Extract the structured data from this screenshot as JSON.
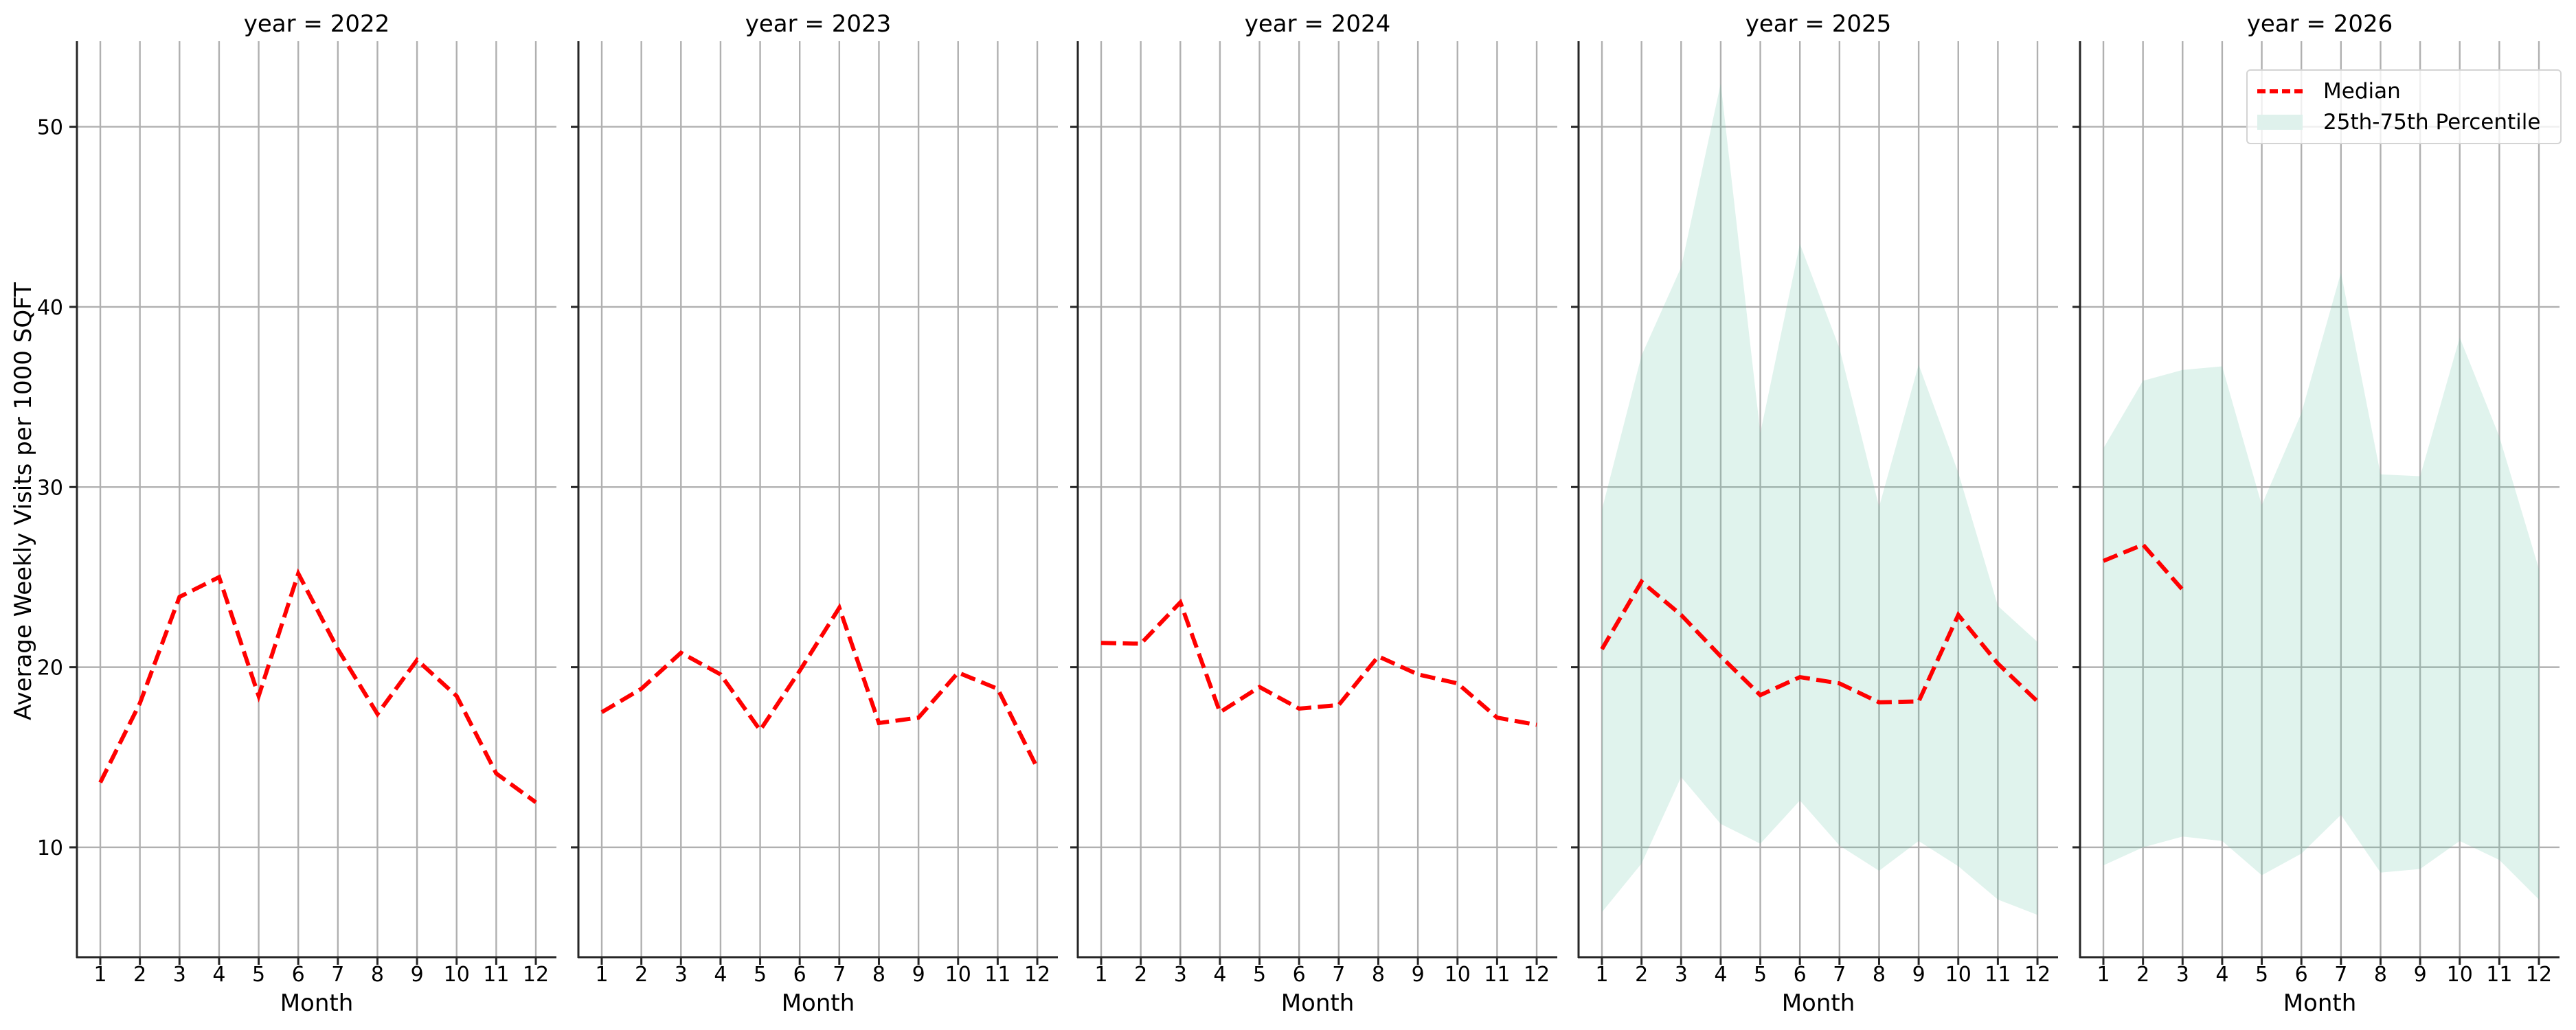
{
  "figure": {
    "ylabel": "Average Weekly Visits per 1000 SQFT",
    "xlabel": "Month",
    "colors": {
      "median": "#ff0000",
      "band": "#dff1ec",
      "grid": "#b0b0b0",
      "spine": "#262626",
      "text": "#000000"
    }
  },
  "legend": {
    "position": "upper right (last panel)",
    "items": [
      {
        "label": "Median",
        "style": "red dashed line"
      },
      {
        "label": "25th-75th Percentile",
        "style": "light teal fill"
      }
    ]
  },
  "chart_data": [
    {
      "type": "line",
      "title": "year = 2022",
      "xlabel": "Month",
      "ylabel": "Average Weekly Visits per 1000 SQFT",
      "x": [
        1,
        2,
        3,
        4,
        5,
        6,
        7,
        8,
        9,
        10,
        11,
        12
      ],
      "ylim": [
        3.9,
        54.75
      ],
      "yticks": [
        10,
        20,
        30,
        40,
        50
      ],
      "grid": true,
      "series": [
        {
          "name": "Median",
          "values": [
            13.6,
            18.0,
            23.9,
            25.0,
            18.4,
            25.2,
            21.0,
            17.4,
            20.4,
            18.4,
            14.1,
            12.5
          ]
        }
      ],
      "band": null
    },
    {
      "type": "line",
      "title": "year = 2023",
      "xlabel": "Month",
      "x": [
        1,
        2,
        3,
        4,
        5,
        6,
        7,
        8,
        9,
        10,
        11,
        12
      ],
      "ylim": [
        3.9,
        54.75
      ],
      "yticks": [
        10,
        20,
        30,
        40,
        50
      ],
      "grid": true,
      "series": [
        {
          "name": "Median",
          "values": [
            17.5,
            18.8,
            20.8,
            19.6,
            16.5,
            19.8,
            23.3,
            16.9,
            17.2,
            19.7,
            18.8,
            14.4
          ]
        }
      ],
      "band": null
    },
    {
      "type": "line",
      "title": "year = 2024",
      "xlabel": "Month",
      "x": [
        1,
        2,
        3,
        4,
        5,
        6,
        7,
        8,
        9,
        10,
        11,
        12
      ],
      "ylim": [
        3.9,
        54.75
      ],
      "yticks": [
        10,
        20,
        30,
        40,
        50
      ],
      "grid": true,
      "series": [
        {
          "name": "Median",
          "values": [
            21.35,
            21.3,
            23.6,
            17.5,
            18.9,
            17.7,
            17.9,
            20.6,
            19.6,
            19.1,
            17.2,
            16.8
          ]
        }
      ],
      "band": null
    },
    {
      "type": "line",
      "title": "year = 2025",
      "xlabel": "Month",
      "x": [
        1,
        2,
        3,
        4,
        5,
        6,
        7,
        8,
        9,
        10,
        11,
        12
      ],
      "ylim": [
        3.9,
        54.75
      ],
      "yticks": [
        10,
        20,
        30,
        40,
        50
      ],
      "grid": true,
      "series": [
        {
          "name": "Median",
          "values": [
            21.0,
            24.75,
            22.9,
            20.6,
            18.45,
            19.45,
            19.1,
            18.05,
            18.1,
            22.9,
            20.2,
            18.1
          ]
        }
      ],
      "band": {
        "name": "25th-75th Percentile",
        "lower": [
          6.4,
          9.1,
          13.9,
          11.3,
          10.2,
          12.6,
          10.1,
          8.7,
          10.35,
          8.95,
          7.1,
          6.25
        ],
        "upper": [
          28.75,
          37.3,
          42.2,
          52.4,
          33.0,
          43.5,
          37.7,
          28.9,
          36.8,
          30.8,
          23.4,
          21.4
        ]
      }
    },
    {
      "type": "line",
      "title": "year = 2026",
      "xlabel": "Month",
      "x": [
        1,
        2,
        3,
        4,
        5,
        6,
        7,
        8,
        9,
        10,
        11,
        12
      ],
      "ylim": [
        3.9,
        54.75
      ],
      "yticks": [
        10,
        20,
        30,
        40,
        50
      ],
      "grid": true,
      "series": [
        {
          "name": "Median",
          "values": [
            25.9,
            26.8,
            24.3,
            null,
            null,
            null,
            null,
            null,
            null,
            null,
            null,
            null
          ]
        }
      ],
      "band": {
        "name": "25th-75th Percentile",
        "lower": [
          9.0,
          10.0,
          10.6,
          10.35,
          8.45,
          9.65,
          11.8,
          8.6,
          8.8,
          10.35,
          9.3,
          7.1
        ],
        "upper": [
          32.15,
          35.9,
          36.5,
          36.7,
          29.0,
          34.1,
          41.9,
          30.7,
          30.6,
          38.3,
          32.8,
          25.45
        ]
      }
    }
  ]
}
